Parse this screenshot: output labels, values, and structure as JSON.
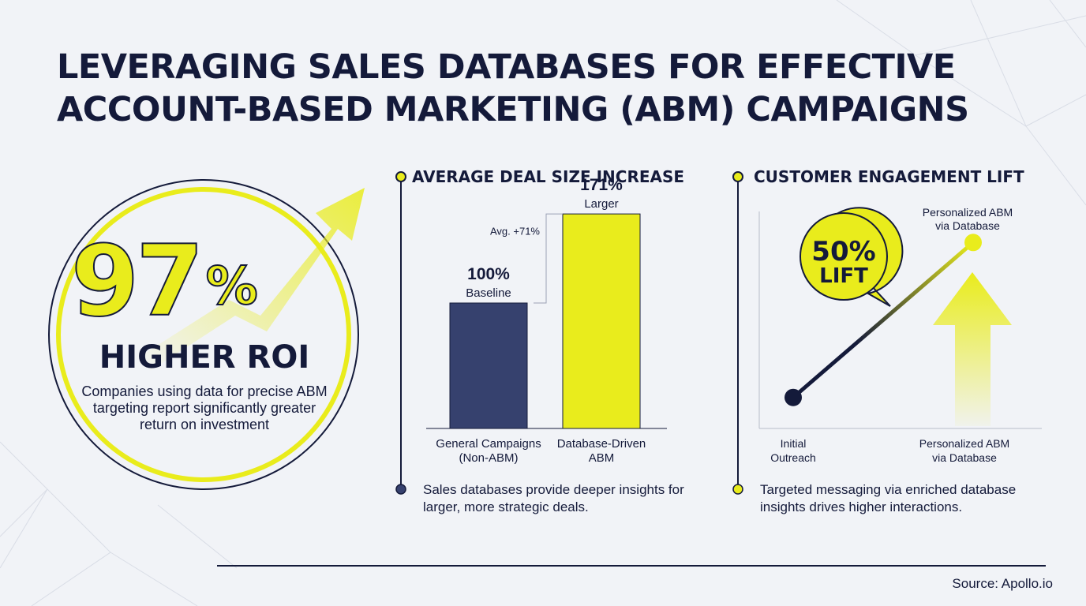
{
  "title": {
    "line1": "LEVERAGING SALES DATABASES FOR EFFECTIVE",
    "line2": "ACCOUNT-BASED MARKETING (ABM) CAMPAIGNS"
  },
  "hero": {
    "value": "97",
    "unit": "%",
    "label": "HIGHER ROI",
    "description": "Companies using data for precise ABM targeting report significantly greater return on investment"
  },
  "deal_section": {
    "title": "AVERAGE DEAL SIZE INCREASE",
    "note": "Sales databases provide deeper insights for larger, more strategic deals."
  },
  "engagement_section": {
    "title": "CUSTOMER ENGAGEMENT LIFT",
    "note": "Targeted messaging via enriched database insights drives higher interactions."
  },
  "source": "Source: Apollo.io",
  "colors": {
    "navy": "#141a3a",
    "bar_navy": "#36416e",
    "yellow": "#e9ec1c"
  },
  "chart_data": [
    {
      "type": "bar",
      "title": "AVERAGE DEAL SIZE INCREASE",
      "categories": [
        "General Campaigns (Non-ABM)",
        "Database-Driven ABM"
      ],
      "category_lines": [
        [
          "General Campaigns",
          "(Non-ABM)"
        ],
        [
          "Database-Driven",
          "ABM"
        ]
      ],
      "values": [
        100,
        171
      ],
      "value_labels": [
        "100%",
        "171%"
      ],
      "sub_labels": [
        "Baseline",
        "Larger"
      ],
      "bar_colors": [
        "#36416e",
        "#e9ec1c"
      ],
      "annotation": "Avg. +71%",
      "ylim": [
        0,
        200
      ]
    },
    {
      "type": "line",
      "title": "CUSTOMER ENGAGEMENT LIFT",
      "categories": [
        "Initial Outreach",
        "Personalized ABM via Database"
      ],
      "category_lines": [
        [
          "Initial",
          "Outreach"
        ],
        [
          "Personalized ABM",
          "via Database"
        ]
      ],
      "values": [
        100,
        150
      ],
      "end_label_lines": [
        "Personalized ABM",
        "via Database"
      ],
      "callout_lines": [
        "50%",
        "LIFT"
      ],
      "ylim": [
        90,
        160
      ]
    }
  ]
}
